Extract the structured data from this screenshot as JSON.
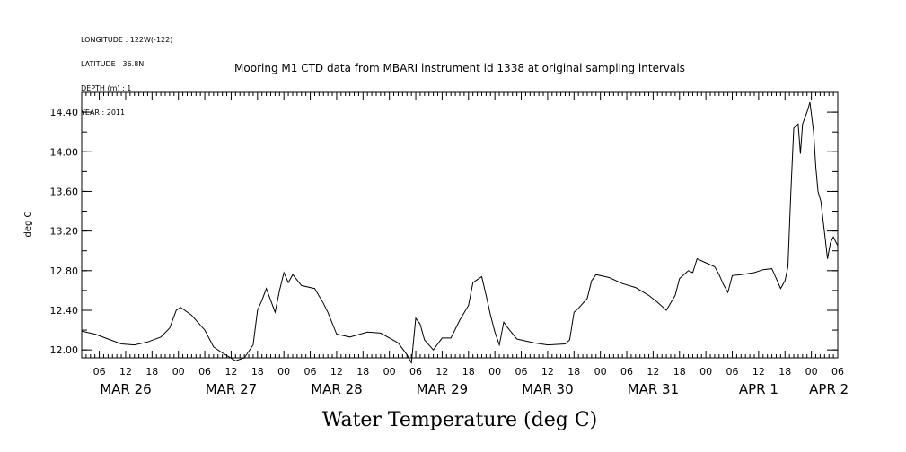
{
  "meta": {
    "longitude": "LONGITUDE : 122W(-122)",
    "latitude": "LATITUDE : 36.8N",
    "depth": "DEPTH (m) : 1",
    "year": "YEAR : 2011"
  },
  "chart_data": {
    "type": "line",
    "title": "Mooring M1 CTD data from MBARI instrument id 1338 at original sampling intervals",
    "xlabel": "Water Temperature (deg C)",
    "ylabel": "deg C",
    "ylim": [
      11.92,
      14.6
    ],
    "yticks": [
      "12.00",
      "12.40",
      "12.80",
      "13.20",
      "13.60",
      "14.00",
      "14.40"
    ],
    "xlim": [
      "MAR 26 02:00",
      "APR 2 06:00"
    ],
    "x_hour_tick_labels": [
      "06",
      "12",
      "18",
      "00",
      "06",
      "12",
      "18",
      "00",
      "06",
      "12",
      "18",
      "00",
      "06",
      "12",
      "18",
      "00",
      "06",
      "12",
      "18",
      "00",
      "06",
      "12",
      "18",
      "00",
      "06",
      "12",
      "18",
      "00",
      "06",
      "12",
      "18",
      "00",
      "06"
    ],
    "x_day_labels": [
      "MAR 26",
      "MAR 27",
      "MAR 28",
      "MAR 29",
      "MAR 30",
      "MAR 31",
      "APR  1",
      "APR  2"
    ],
    "grid": false,
    "series": [
      {
        "values_hours_since_axis_start_and_degC": "see points",
        "points": [
          [
            "MAR 26 02:00",
            12.19
          ],
          [
            "MAR 26 05:00",
            12.16
          ],
          [
            "MAR 26 08:00",
            12.11
          ],
          [
            "MAR 26 11:00",
            12.06
          ],
          [
            "MAR 26 14:00",
            12.05
          ],
          [
            "MAR 26 17:00",
            12.08
          ],
          [
            "MAR 26 20:00",
            12.13
          ],
          [
            "MAR 26 22:00",
            12.22
          ],
          [
            "MAR 26 23:30",
            12.4
          ],
          [
            "MAR 27 00:30",
            12.43
          ],
          [
            "MAR 27 03:00",
            12.35
          ],
          [
            "MAR 27 06:00",
            12.2
          ],
          [
            "MAR 27 08:00",
            12.03
          ],
          [
            "MAR 27 10:00",
            11.97
          ],
          [
            "MAR 27 13:00",
            11.89
          ],
          [
            "MAR 27 15:00",
            11.92
          ],
          [
            "MAR 27 17:00",
            12.05
          ],
          [
            "MAR 27 18:00",
            12.4
          ],
          [
            "MAR 27 19:00",
            12.5
          ],
          [
            "MAR 27 20:00",
            12.62
          ],
          [
            "MAR 27 21:00",
            12.5
          ],
          [
            "MAR 27 22:00",
            12.38
          ],
          [
            "MAR 27 23:00",
            12.6
          ],
          [
            "MAR 28 00:00",
            12.78
          ],
          [
            "MAR 28 01:00",
            12.68
          ],
          [
            "MAR 28 02:00",
            12.76
          ],
          [
            "MAR 28 04:00",
            12.65
          ],
          [
            "MAR 28 07:00",
            12.62
          ],
          [
            "MAR 28 09:00",
            12.47
          ],
          [
            "MAR 28 10:00",
            12.38
          ],
          [
            "MAR 28 12:00",
            12.16
          ],
          [
            "MAR 28 15:00",
            12.13
          ],
          [
            "MAR 28 19:00",
            12.18
          ],
          [
            "MAR 28 22:00",
            12.17
          ],
          [
            "MAR 29 02:00",
            12.07
          ],
          [
            "MAR 29 04:00",
            11.95
          ],
          [
            "MAR 29 05:00",
            11.87
          ],
          [
            "MAR 29 06:00",
            12.32
          ],
          [
            "MAR 29 07:00",
            12.26
          ],
          [
            "MAR 29 08:00",
            12.1
          ],
          [
            "MAR 29 10:00",
            12.0
          ],
          [
            "MAR 29 12:00",
            12.12
          ],
          [
            "MAR 29 14:00",
            12.12
          ],
          [
            "MAR 29 16:00",
            12.3
          ],
          [
            "MAR 29 18:00",
            12.45
          ],
          [
            "MAR 29 19:00",
            12.68
          ],
          [
            "MAR 29 21:00",
            12.74
          ],
          [
            "MAR 29 22:00",
            12.55
          ],
          [
            "MAR 29 23:00",
            12.35
          ],
          [
            "MAR 30 00:00",
            12.18
          ],
          [
            "MAR 30 01:00",
            12.05
          ],
          [
            "MAR 30 02:00",
            12.28
          ],
          [
            "MAR 30 03:00",
            12.22
          ],
          [
            "MAR 30 05:00",
            12.11
          ],
          [
            "MAR 30 09:00",
            12.07
          ],
          [
            "MAR 30 12:00",
            12.05
          ],
          [
            "MAR 30 16:00",
            12.06
          ],
          [
            "MAR 30 17:00",
            12.1
          ],
          [
            "MAR 30 18:00",
            12.38
          ],
          [
            "MAR 30 19:00",
            12.42
          ],
          [
            "MAR 30 21:00",
            12.52
          ],
          [
            "MAR 30 22:00",
            12.7
          ],
          [
            "MAR 30 23:00",
            12.76
          ],
          [
            "MAR 31 02:00",
            12.73
          ],
          [
            "MAR 31 05:00",
            12.67
          ],
          [
            "MAR 31 08:00",
            12.63
          ],
          [
            "MAR 31 11:00",
            12.55
          ],
          [
            "MAR 31 13:00",
            12.48
          ],
          [
            "MAR 31 15:00",
            12.4
          ],
          [
            "MAR 31 17:00",
            12.55
          ],
          [
            "MAR 31 18:00",
            12.72
          ],
          [
            "MAR 31 19:00",
            12.76
          ],
          [
            "MAR 31 20:00",
            12.8
          ],
          [
            "MAR 31 21:00",
            12.78
          ],
          [
            "MAR 31 22:00",
            12.92
          ],
          [
            "APR 1 00:00",
            12.88
          ],
          [
            "APR 1 02:00",
            12.84
          ],
          [
            "APR 1 03:00",
            12.76
          ],
          [
            "APR 1 04:00",
            12.66
          ],
          [
            "APR 1 05:00",
            12.58
          ],
          [
            "APR 1 06:00",
            12.75
          ],
          [
            "APR 1 08:00",
            12.76
          ],
          [
            "APR 1 11:00",
            12.78
          ],
          [
            "APR 1 13:00",
            12.81
          ],
          [
            "APR 1 15:00",
            12.82
          ],
          [
            "APR 1 16:00",
            12.72
          ],
          [
            "APR 1 17:00",
            12.62
          ],
          [
            "APR 1 18:00",
            12.7
          ],
          [
            "APR 1 18:40",
            12.84
          ],
          [
            "APR 1 19:20",
            13.6
          ],
          [
            "APR 1 20:00",
            14.24
          ],
          [
            "APR 1 21:00",
            14.28
          ],
          [
            "APR 1 21:30",
            13.98
          ],
          [
            "APR 1 22:00",
            14.28
          ],
          [
            "APR 1 23:00",
            14.4
          ],
          [
            "APR 1 23:40",
            14.5
          ],
          [
            "APR 2 00:30",
            14.2
          ],
          [
            "APR 2 01:00",
            13.85
          ],
          [
            "APR 2 01:30",
            13.6
          ],
          [
            "APR 2 02:10",
            13.5
          ],
          [
            "APR 2 03:00",
            13.18
          ],
          [
            "APR 2 03:40",
            12.92
          ],
          [
            "APR 2 04:20",
            13.08
          ],
          [
            "APR 2 05:00",
            13.14
          ],
          [
            "APR 2 06:00",
            13.05
          ]
        ]
      }
    ]
  }
}
